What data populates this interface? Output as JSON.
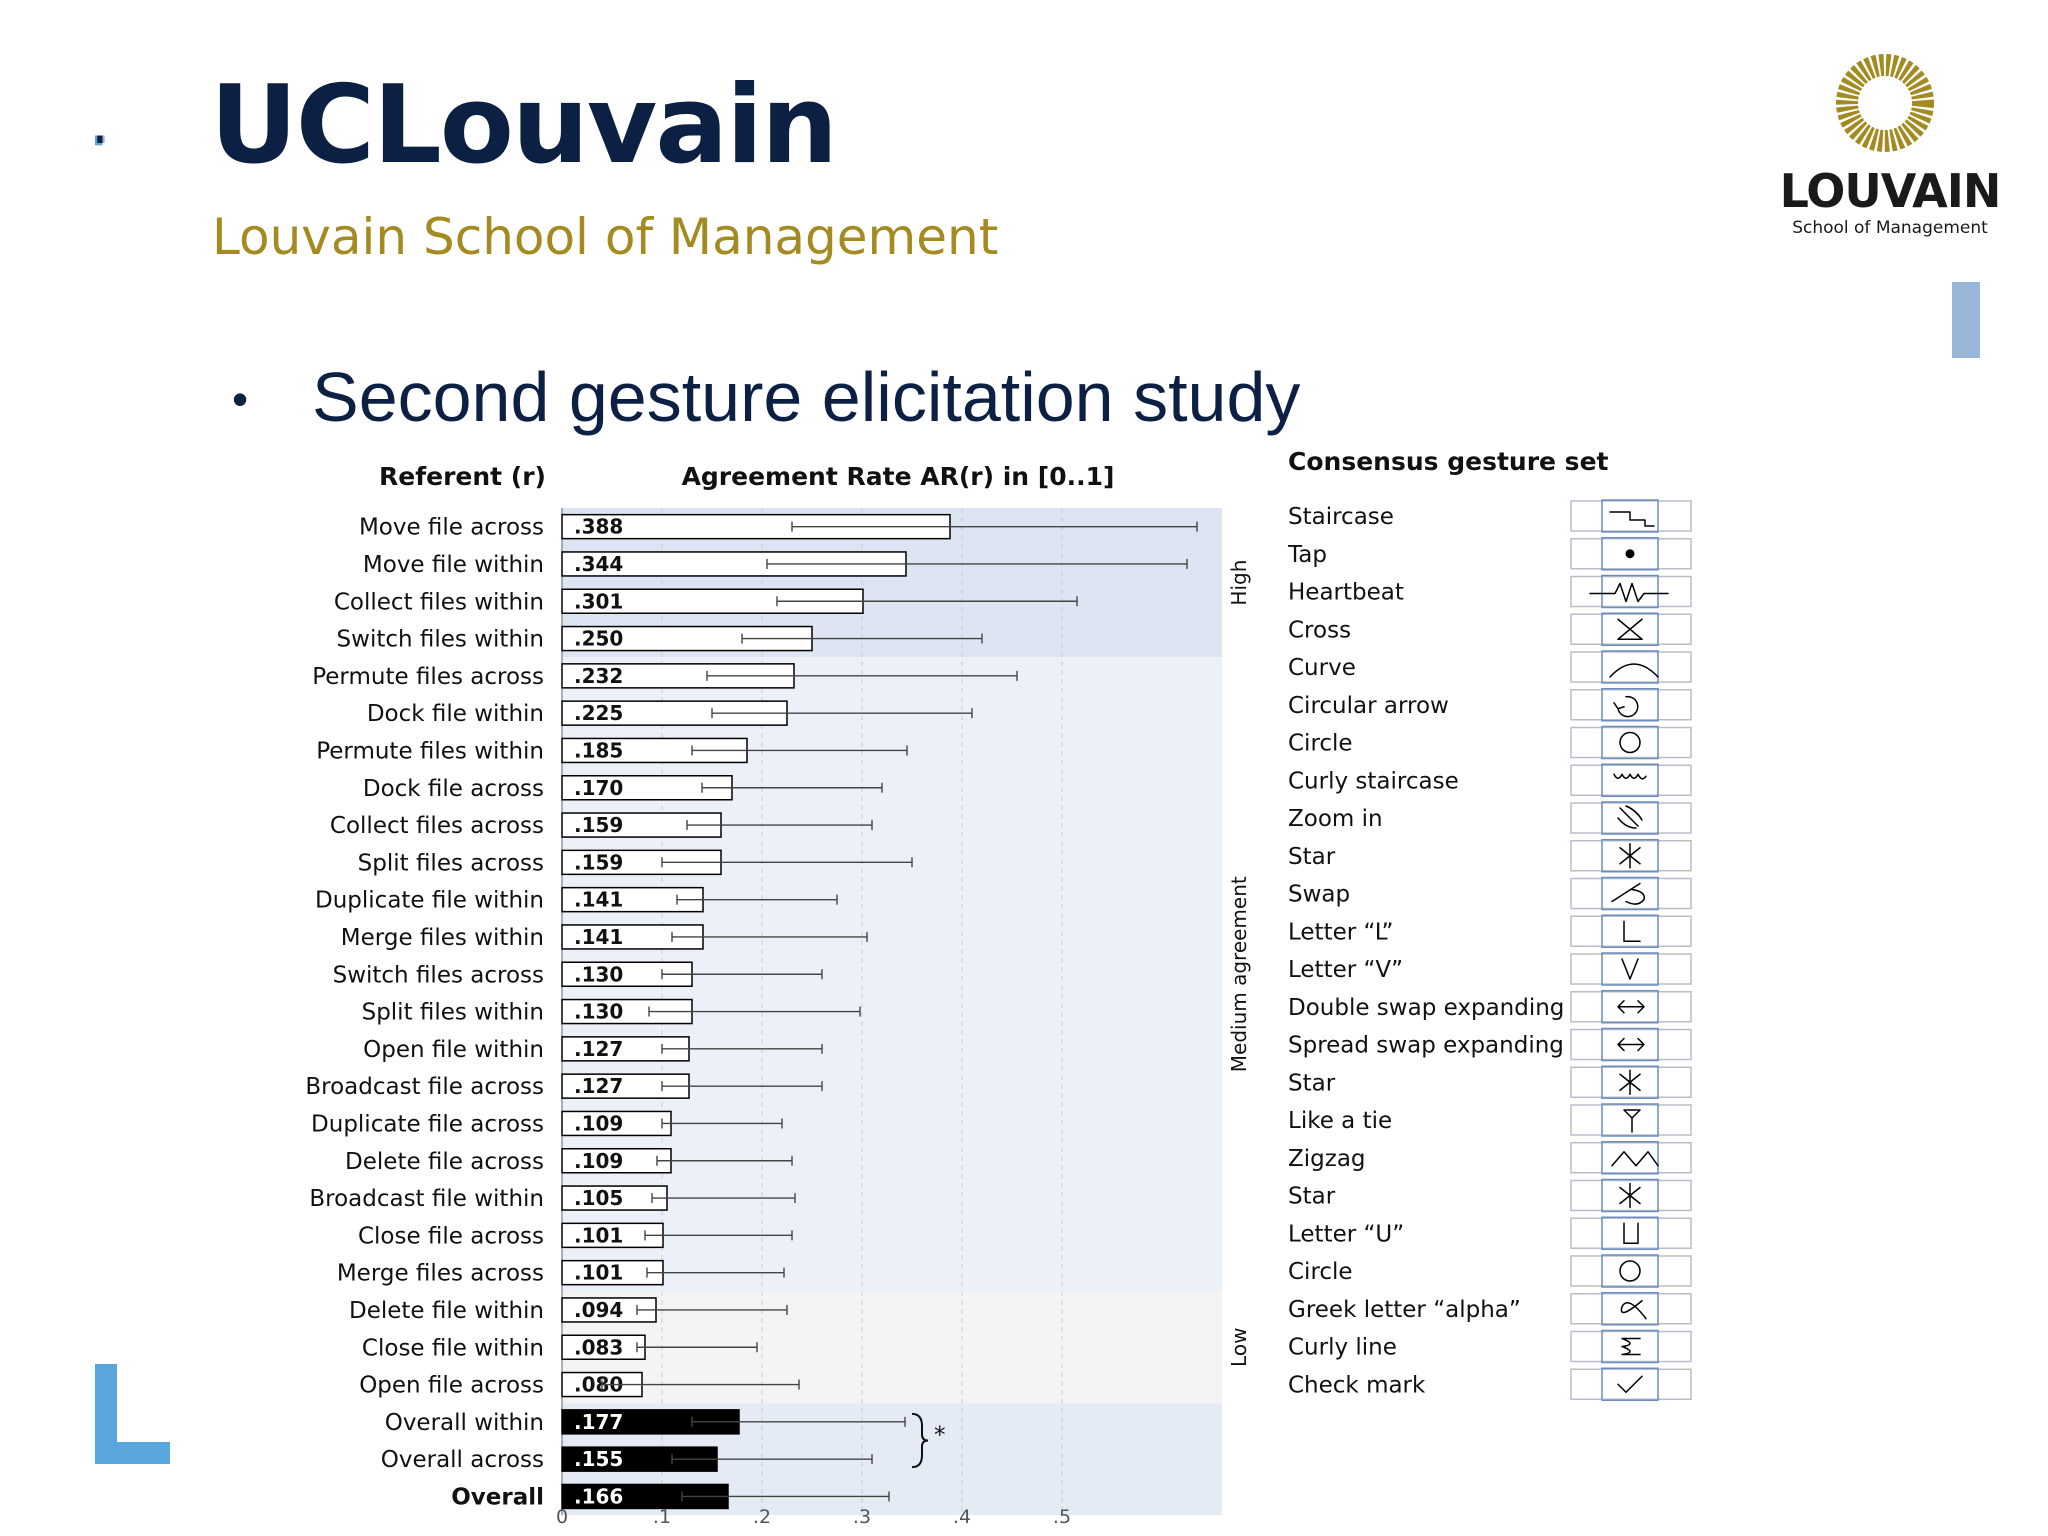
{
  "header": {
    "brand": "UCLouvain",
    "school": "Louvain School of Management",
    "logo_word": "LOUVAIN",
    "logo_sub": "School of Management"
  },
  "slide": {
    "bullet": "•",
    "title": "Second gesture elicitation study"
  },
  "chart_data": {
    "type": "bar",
    "orientation": "horizontal",
    "title": "Agreement Rate AR(r) in [0..1]",
    "category_header": "Referent (r)",
    "xlim": [
      0,
      0.6
    ],
    "x_ticks": [
      "0",
      ".1",
      ".2",
      ".3",
      ".4",
      ".5"
    ],
    "x_tick_values": [
      0,
      0.1,
      0.2,
      0.3,
      0.4,
      0.5
    ],
    "grid": "vertical dashed",
    "zones": [
      {
        "label": "High",
        "from": 0,
        "to": 3
      },
      {
        "label": "Medium agreement",
        "from": 4,
        "to": 20
      },
      {
        "label": "Low",
        "from": 21,
        "to": 23
      }
    ],
    "significance": {
      "label": "*",
      "rows": [
        24,
        25
      ]
    },
    "rows": [
      {
        "label": "Move file across",
        "value": 0.388,
        "display": ".388",
        "err_low": 0.23,
        "err_high": 0.635,
        "style": "outline"
      },
      {
        "label": "Move file within",
        "value": 0.344,
        "display": ".344",
        "err_low": 0.205,
        "err_high": 0.625,
        "style": "outline"
      },
      {
        "label": "Collect files within",
        "value": 0.301,
        "display": ".301",
        "err_low": 0.215,
        "err_high": 0.515,
        "style": "outline"
      },
      {
        "label": "Switch files within",
        "value": 0.25,
        "display": ".250",
        "err_low": 0.18,
        "err_high": 0.42,
        "style": "outline"
      },
      {
        "label": "Permute files across",
        "value": 0.232,
        "display": ".232",
        "err_low": 0.145,
        "err_high": 0.455,
        "style": "outline"
      },
      {
        "label": "Dock file within",
        "value": 0.225,
        "display": ".225",
        "err_low": 0.15,
        "err_high": 0.41,
        "style": "outline"
      },
      {
        "label": "Permute files within",
        "value": 0.185,
        "display": ".185",
        "err_low": 0.13,
        "err_high": 0.345,
        "style": "outline"
      },
      {
        "label": "Dock file across",
        "value": 0.17,
        "display": ".170",
        "err_low": 0.14,
        "err_high": 0.32,
        "style": "outline"
      },
      {
        "label": "Collect files across",
        "value": 0.159,
        "display": ".159",
        "err_low": 0.125,
        "err_high": 0.31,
        "style": "outline"
      },
      {
        "label": "Split files across",
        "value": 0.159,
        "display": ".159",
        "err_low": 0.1,
        "err_high": 0.35,
        "style": "outline"
      },
      {
        "label": "Duplicate file within",
        "value": 0.141,
        "display": ".141",
        "err_low": 0.115,
        "err_high": 0.275,
        "style": "outline"
      },
      {
        "label": "Merge files within",
        "value": 0.141,
        "display": ".141",
        "err_low": 0.11,
        "err_high": 0.305,
        "style": "outline"
      },
      {
        "label": "Switch files across",
        "value": 0.13,
        "display": ".130",
        "err_low": 0.1,
        "err_high": 0.26,
        "style": "outline"
      },
      {
        "label": "Split files within",
        "value": 0.13,
        "display": ".130",
        "err_low": 0.087,
        "err_high": 0.298,
        "style": "outline"
      },
      {
        "label": "Open file within",
        "value": 0.127,
        "display": ".127",
        "err_low": 0.1,
        "err_high": 0.26,
        "style": "outline"
      },
      {
        "label": "Broadcast file across",
        "value": 0.127,
        "display": ".127",
        "err_low": 0.1,
        "err_high": 0.26,
        "style": "outline"
      },
      {
        "label": "Duplicate file across",
        "value": 0.109,
        "display": ".109",
        "err_low": 0.1,
        "err_high": 0.22,
        "style": "outline"
      },
      {
        "label": "Delete file across",
        "value": 0.109,
        "display": ".109",
        "err_low": 0.095,
        "err_high": 0.23,
        "style": "outline"
      },
      {
        "label": "Broadcast file within",
        "value": 0.105,
        "display": ".105",
        "err_low": 0.09,
        "err_high": 0.233,
        "style": "outline"
      },
      {
        "label": "Close file across",
        "value": 0.101,
        "display": ".101",
        "err_low": 0.083,
        "err_high": 0.23,
        "style": "outline"
      },
      {
        "label": "Merge files across",
        "value": 0.101,
        "display": ".101",
        "err_low": 0.085,
        "err_high": 0.222,
        "style": "outline"
      },
      {
        "label": "Delete file within",
        "value": 0.094,
        "display": ".094",
        "err_low": 0.075,
        "err_high": 0.225,
        "style": "outline"
      },
      {
        "label": "Close file within",
        "value": 0.083,
        "display": ".083",
        "err_low": 0.075,
        "err_high": 0.195,
        "style": "outline"
      },
      {
        "label": "Open file across",
        "value": 0.08,
        "display": ".080",
        "err_low": 0.04,
        "err_high": 0.237,
        "style": "outline"
      },
      {
        "label": "Overall within",
        "value": 0.177,
        "display": ".177",
        "err_low": 0.13,
        "err_high": 0.343,
        "style": "filled"
      },
      {
        "label": "Overall across",
        "value": 0.155,
        "display": ".155",
        "err_low": 0.11,
        "err_high": 0.31,
        "style": "filled"
      },
      {
        "label": "Overall",
        "value": 0.166,
        "display": ".166",
        "err_low": 0.12,
        "err_high": 0.327,
        "style": "filled",
        "bold": true
      }
    ]
  },
  "gesture_set": {
    "title": "Consensus gesture set",
    "items": [
      {
        "name": "Staircase",
        "icon": "staircase-icon"
      },
      {
        "name": "Tap",
        "icon": "dot-icon"
      },
      {
        "name": "Heartbeat",
        "icon": "heartbeat-icon"
      },
      {
        "name": "Cross",
        "icon": "cross-icon"
      },
      {
        "name": "Curve",
        "icon": "curve-icon"
      },
      {
        "name": "Circular arrow",
        "icon": "circular-arrow-icon"
      },
      {
        "name": "Circle",
        "icon": "circle-icon"
      },
      {
        "name": "Curly staircase",
        "icon": "curly-staircase-icon"
      },
      {
        "name": "Zoom in",
        "icon": "zoom-in-icon"
      },
      {
        "name": "Star",
        "icon": "star-icon"
      },
      {
        "name": "Swap",
        "icon": "swap-icon"
      },
      {
        "name": "Letter “L”",
        "icon": "letter-l-icon"
      },
      {
        "name": "Letter “V”",
        "icon": "letter-v-icon"
      },
      {
        "name": "Double swap expanding",
        "icon": "double-arrow-icon"
      },
      {
        "name": "Spread swap expanding",
        "icon": "double-arrow-icon"
      },
      {
        "name": "Star",
        "icon": "star-icon"
      },
      {
        "name": "Like a tie",
        "icon": "tie-icon"
      },
      {
        "name": "Zigzag",
        "icon": "zigzag-icon"
      },
      {
        "name": "Star",
        "icon": "star-icon"
      },
      {
        "name": "Letter “U”",
        "icon": "letter-u-icon"
      },
      {
        "name": "Circle",
        "icon": "circle-icon"
      },
      {
        "name": "Greek letter “alpha”",
        "icon": "alpha-icon"
      },
      {
        "name": "Curly line",
        "icon": "curly-line-icon"
      },
      {
        "name": "Check mark",
        "icon": "check-mark-icon"
      }
    ]
  },
  "colors": {
    "navy": "#0c2044",
    "gold": "#a38b22",
    "accent_blue": "#5aa7e0",
    "light_blue": "#9ab6d8",
    "zone_high": "#dde5f2",
    "zone_medium": "#ecf1f9",
    "zone_low": "#f4f4f4",
    "zone_overall": "#e5ebf5"
  }
}
